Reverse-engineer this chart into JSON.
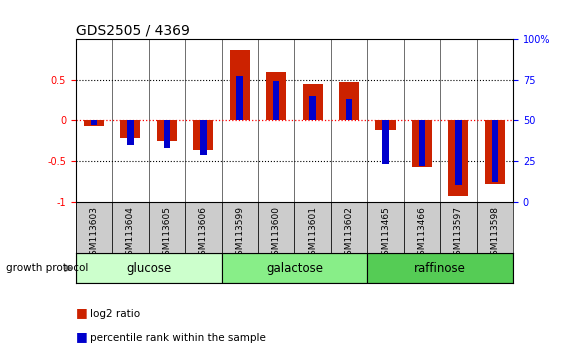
{
  "title": "GDS2505 / 4369",
  "samples": [
    "GSM113603",
    "GSM113604",
    "GSM113605",
    "GSM113606",
    "GSM113599",
    "GSM113600",
    "GSM113601",
    "GSM113602",
    "GSM113465",
    "GSM113466",
    "GSM113597",
    "GSM113598"
  ],
  "log2_ratio": [
    -0.07,
    -0.22,
    -0.25,
    -0.37,
    0.87,
    0.6,
    0.45,
    0.47,
    -0.12,
    -0.57,
    -0.93,
    -0.78
  ],
  "percentile_rank": [
    47,
    35,
    33,
    29,
    77,
    74,
    65,
    63,
    23,
    22,
    10,
    12
  ],
  "groups": [
    {
      "label": "glucose",
      "start": 0,
      "end": 4,
      "color": "#ccffcc"
    },
    {
      "label": "galactose",
      "start": 4,
      "end": 8,
      "color": "#88ee88"
    },
    {
      "label": "raffinose",
      "start": 8,
      "end": 12,
      "color": "#55cc55"
    }
  ],
  "ylim": [
    -1,
    1
  ],
  "left_yticks": [
    -1,
    -0.5,
    0,
    0.5
  ],
  "right_yticks": [
    0,
    25,
    50,
    75,
    100
  ],
  "bar_color_red": "#cc2200",
  "bar_color_blue": "#0000cc",
  "title_fontsize": 10,
  "tick_fontsize": 7,
  "label_fontsize": 7.5,
  "group_label_fontsize": 8.5,
  "legend_fontsize": 7.5,
  "sample_label_fontsize": 6.5
}
